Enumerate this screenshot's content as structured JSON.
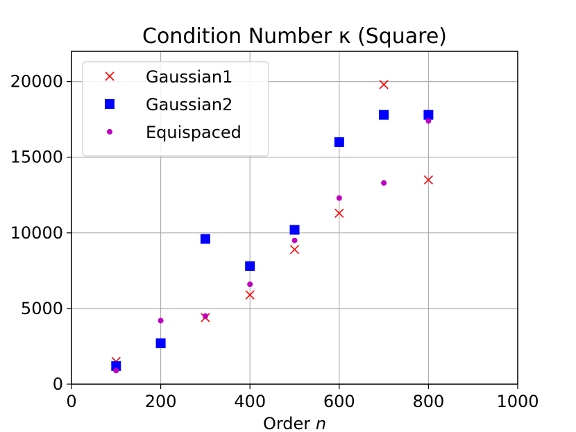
{
  "chart_data": {
    "type": "scatter",
    "title": "Condition Number κ (Square)",
    "xlabel_text": "Order ",
    "xlabel_var": "n",
    "ylabel": "",
    "xlim": [
      0,
      1000
    ],
    "ylim": [
      0,
      22000
    ],
    "xticks": [
      0,
      200,
      400,
      600,
      800,
      1000
    ],
    "yticks": [
      0,
      5000,
      10000,
      15000,
      20000
    ],
    "xtick_labels": [
      "0",
      "200",
      "400",
      "600",
      "800",
      "1000"
    ],
    "ytick_labels": [
      "0",
      "5000",
      "10000",
      "15000",
      "20000"
    ],
    "grid": true,
    "legend_position": "top-left",
    "series": [
      {
        "name": "Gaussian1",
        "marker": "x",
        "color": "#ff0000",
        "x": [
          100,
          200,
          300,
          400,
          500,
          600,
          700,
          800
        ],
        "y": [
          1500,
          2700,
          4400,
          5900,
          8900,
          11300,
          19800,
          13500
        ]
      },
      {
        "name": "Gaussian2",
        "marker": "square",
        "color": "#0000ff",
        "x": [
          100,
          200,
          300,
          400,
          500,
          600,
          700,
          800
        ],
        "y": [
          1200,
          2700,
          9600,
          7800,
          10200,
          16000,
          17800,
          17800
        ]
      },
      {
        "name": "Equispaced",
        "marker": "dot",
        "color": "#bf00bf",
        "x": [
          100,
          200,
          300,
          400,
          500,
          600,
          700,
          800
        ],
        "y": [
          900,
          4200,
          4500,
          6600,
          9500,
          12300,
          13300,
          17400
        ]
      }
    ]
  }
}
